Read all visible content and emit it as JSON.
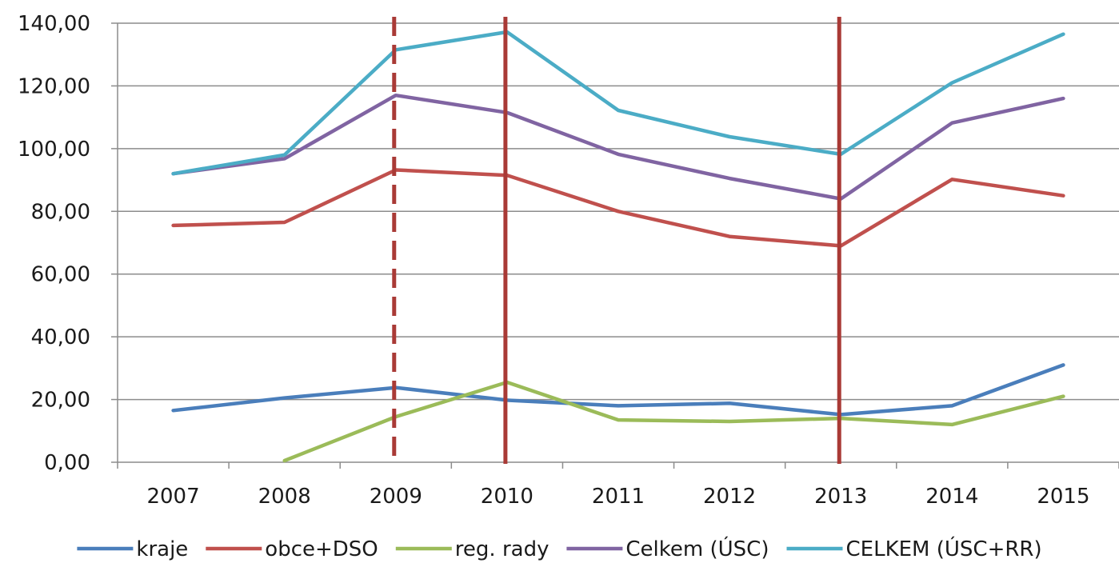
{
  "chart_data": {
    "type": "line",
    "title": "",
    "xlabel": "",
    "ylabel": "",
    "categories": [
      "2007",
      "2008",
      "2009",
      "2010",
      "2011",
      "2012",
      "2013",
      "2014",
      "2015"
    ],
    "ylim": [
      0,
      140
    ],
    "yticks": [
      0,
      20,
      40,
      60,
      80,
      100,
      120,
      140
    ],
    "ytick_labels": [
      "0,00",
      "20,00",
      "40,00",
      "60,00",
      "80,00",
      "100,00",
      "120,00",
      "140,00"
    ],
    "grid": true,
    "legend_position": "bottom",
    "series": [
      {
        "name": "kraje",
        "color": "#4a7ebb",
        "values": [
          16.5,
          20.5,
          23.8,
          19.8,
          18.0,
          18.8,
          15.2,
          18.0,
          31.0
        ]
      },
      {
        "name": "obce+DSO",
        "color": "#c0504d",
        "values": [
          75.5,
          76.5,
          93.2,
          91.5,
          80.0,
          72.0,
          69.0,
          90.2,
          85.0
        ]
      },
      {
        "name": "reg. rady",
        "color": "#9bbb59",
        "values": [
          null,
          0.5,
          14.5,
          25.5,
          13.5,
          13.0,
          14.0,
          12.0,
          21.0
        ]
      },
      {
        "name": "Celkem (ÚSC)",
        "color": "#8064a2",
        "values": [
          92.0,
          96.8,
          117.0,
          111.5,
          98.2,
          90.5,
          84.0,
          108.2,
          116.0
        ]
      },
      {
        "name": "CELKEM (ÚSC+RR)",
        "color": "#4bacc6",
        "values": [
          92.0,
          98.0,
          131.5,
          137.2,
          112.2,
          103.8,
          98.2,
          121.0,
          136.5
        ]
      }
    ],
    "vertical_markers": [
      {
        "category": "2009",
        "style": "dashed",
        "color": "#a93a36"
      },
      {
        "category": "2010",
        "style": "solid",
        "color": "#a93a36"
      },
      {
        "category": "2013",
        "style": "solid",
        "color": "#a93a36"
      }
    ]
  }
}
